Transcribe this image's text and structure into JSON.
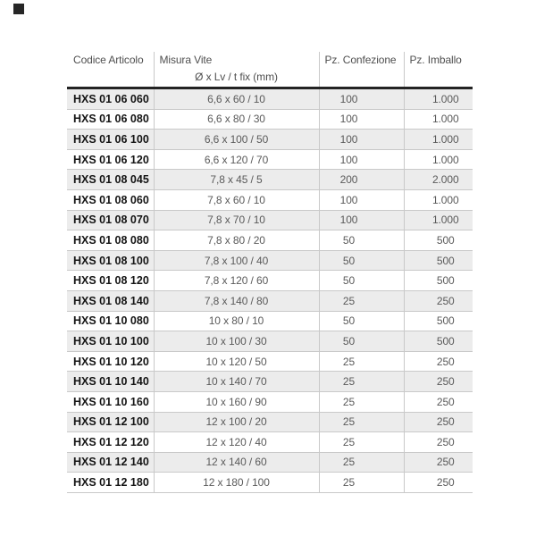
{
  "page": {
    "background": "#ffffff"
  },
  "logo": {
    "color": "#262626"
  },
  "table": {
    "columns": [
      {
        "key": "codice",
        "label": "Codice Articolo"
      },
      {
        "key": "misura",
        "label": "Misura Vite",
        "sublabel": "Ø x Lv / t fix (mm)"
      },
      {
        "key": "confezione",
        "label": "Pz. Confezione"
      },
      {
        "key": "imballo",
        "label": "Pz. Imballo"
      }
    ],
    "rows": [
      {
        "codice": "HXS 01 06 060",
        "misura": "6,6 x 60 / 10",
        "confezione": "100",
        "imballo": "1.000"
      },
      {
        "codice": "HXS 01 06 080",
        "misura": "6,6 x 80 / 30",
        "confezione": "100",
        "imballo": "1.000"
      },
      {
        "codice": "HXS 01 06 100",
        "misura": "6,6 x 100 / 50",
        "confezione": "100",
        "imballo": "1.000"
      },
      {
        "codice": "HXS 01 06 120",
        "misura": "6,6 x 120 / 70",
        "confezione": "100",
        "imballo": "1.000"
      },
      {
        "codice": "HXS 01 08 045",
        "misura": "7,8 x 45 / 5",
        "confezione": "200",
        "imballo": "2.000"
      },
      {
        "codice": "HXS 01 08 060",
        "misura": "7,8 x 60 / 10",
        "confezione": "100",
        "imballo": "1.000"
      },
      {
        "codice": "HXS 01 08 070",
        "misura": "7,8 x 70 / 10",
        "confezione": "100",
        "imballo": "1.000"
      },
      {
        "codice": "HXS 01 08 080",
        "misura": "7,8 x 80 / 20",
        "confezione": "50",
        "imballo": "500"
      },
      {
        "codice": "HXS 01 08 100",
        "misura": "7,8 x 100 / 40",
        "confezione": "50",
        "imballo": "500"
      },
      {
        "codice": "HXS 01 08 120",
        "misura": "7,8 x 120 / 60",
        "confezione": "50",
        "imballo": "500"
      },
      {
        "codice": "HXS 01 08 140",
        "misura": "7,8 x 140 / 80",
        "confezione": "25",
        "imballo": "250"
      },
      {
        "codice": "HXS 01 10 080",
        "misura": "10 x 80 / 10",
        "confezione": "50",
        "imballo": "500"
      },
      {
        "codice": "HXS 01 10 100",
        "misura": "10 x 100 / 30",
        "confezione": "50",
        "imballo": "500"
      },
      {
        "codice": "HXS 01 10 120",
        "misura": "10 x 120 / 50",
        "confezione": "25",
        "imballo": "250"
      },
      {
        "codice": "HXS 01 10 140",
        "misura": "10 x 140 / 70",
        "confezione": "25",
        "imballo": "250"
      },
      {
        "codice": "HXS 01 10 160",
        "misura": "10 x 160 / 90",
        "confezione": "25",
        "imballo": "250"
      },
      {
        "codice": "HXS 01 12 100",
        "misura": "12 x 100 / 20",
        "confezione": "25",
        "imballo": "250"
      },
      {
        "codice": "HXS 01 12 120",
        "misura": "12 x 120 / 40",
        "confezione": "25",
        "imballo": "250"
      },
      {
        "codice": "HXS 01 12 140",
        "misura": "12 x 140 / 60",
        "confezione": "25",
        "imballo": "250"
      },
      {
        "codice": "HXS 01 12 180",
        "misura": "12 x 180 / 100",
        "confezione": "25",
        "imballo": "250"
      }
    ],
    "colors": {
      "stripe": "#ececec",
      "row_border": "#c9c9c9",
      "header_rule": "#232323",
      "code_text": "#141414",
      "value_text": "#5a5a5a",
      "header_text": "#4f4f4f"
    }
  }
}
